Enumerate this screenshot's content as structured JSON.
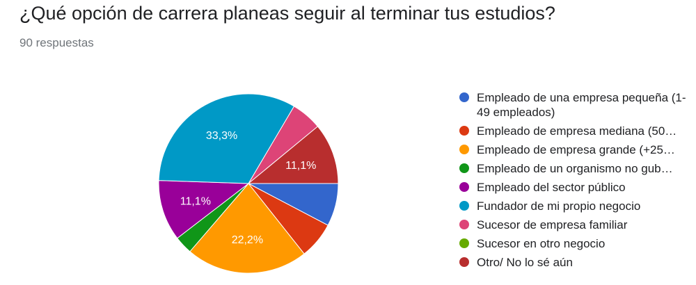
{
  "title": "¿Qué opción de carrera planeas seguir al terminar tus estudios?",
  "subtitle": "90 respuestas",
  "chart_data": {
    "type": "pie",
    "title": "¿Qué opción de carrera planeas seguir al terminar tus estudios?",
    "total_responses": 90,
    "legend_position": "right",
    "slices": [
      {
        "label": "Empleado de una empresa pequeña (1-49 empleados)",
        "value": 7.8,
        "color": "#3366cc",
        "shown_label": ""
      },
      {
        "label": "Empleado de empresa mediana (50…",
        "value": 6.7,
        "color": "#dc3912",
        "shown_label": ""
      },
      {
        "label": "Empleado de empresa grande (+25…",
        "value": 22.2,
        "color": "#ff9900",
        "shown_label": "22,2%"
      },
      {
        "label": "Empleado de un organismo no gub…",
        "value": 3.3,
        "color": "#109618",
        "shown_label": ""
      },
      {
        "label": "Empleado del sector público",
        "value": 11.1,
        "color": "#990099",
        "shown_label": "11,1%"
      },
      {
        "label": "Fundador de mi propio negocio",
        "value": 33.3,
        "color": "#0099c6",
        "shown_label": "33,3%"
      },
      {
        "label": "Sucesor de empresa familiar",
        "value": 5.6,
        "color": "#dd4477",
        "shown_label": ""
      },
      {
        "label": "Sucesor en otro negocio",
        "value": 0,
        "color": "#66aa00",
        "shown_label": ""
      },
      {
        "label": "Otro/ No lo sé aún",
        "value": 11.1,
        "color": "#b82e2e",
        "shown_label": "11,1%"
      }
    ]
  }
}
